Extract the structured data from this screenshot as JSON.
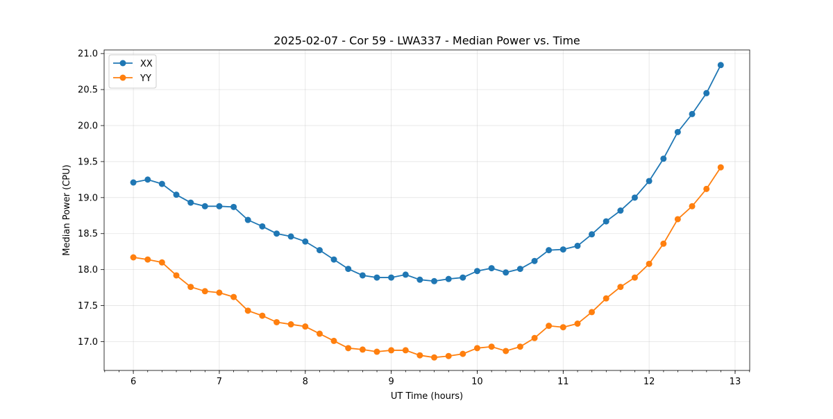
{
  "chart_data": {
    "type": "line",
    "title": "2025-02-07 - Cor 59 - LWA337 - Median Power vs. Time",
    "xlabel": "UT Time (hours)",
    "ylabel": "Median Power (CPU)",
    "xlim": [
      5.66,
      13.17
    ],
    "ylim": [
      16.6,
      21.05
    ],
    "x_ticks": [
      6,
      7,
      8,
      9,
      10,
      11,
      12,
      13
    ],
    "x_minor_tick_step": 0.1667,
    "y_ticks": [
      17.0,
      17.5,
      18.0,
      18.5,
      19.0,
      19.5,
      20.0,
      20.5,
      21.0
    ],
    "grid": true,
    "legend": "upper left",
    "x": [
      6.0,
      6.167,
      6.333,
      6.5,
      6.667,
      6.833,
      7.0,
      7.167,
      7.333,
      7.5,
      7.667,
      7.833,
      8.0,
      8.167,
      8.333,
      8.5,
      8.667,
      8.833,
      9.0,
      9.167,
      9.333,
      9.5,
      9.667,
      9.833,
      10.0,
      10.167,
      10.333,
      10.5,
      10.667,
      10.833,
      11.0,
      11.167,
      11.333,
      11.5,
      11.667,
      11.833,
      12.0,
      12.167,
      12.333,
      12.5,
      12.667,
      12.833
    ],
    "series": [
      {
        "name": "XX",
        "color": "#1f77b4",
        "values": [
          19.21,
          19.25,
          19.19,
          19.04,
          18.93,
          18.88,
          18.88,
          18.87,
          18.69,
          18.6,
          18.5,
          18.46,
          18.39,
          18.27,
          18.14,
          18.01,
          17.92,
          17.89,
          17.89,
          17.93,
          17.86,
          17.84,
          17.87,
          17.89,
          17.98,
          18.02,
          17.96,
          18.01,
          18.12,
          18.27,
          18.28,
          18.33,
          18.49,
          18.67,
          18.82,
          19.0,
          19.23,
          19.54,
          19.91,
          20.16,
          20.45,
          20.84
        ]
      },
      {
        "name": "YY",
        "color": "#ff7f0e",
        "values": [
          18.17,
          18.14,
          18.1,
          17.92,
          17.76,
          17.7,
          17.68,
          17.62,
          17.43,
          17.36,
          17.27,
          17.24,
          17.21,
          17.11,
          17.01,
          16.91,
          16.89,
          16.86,
          16.88,
          16.88,
          16.81,
          16.78,
          16.8,
          16.83,
          16.91,
          16.93,
          16.87,
          16.93,
          17.05,
          17.22,
          17.2,
          17.25,
          17.41,
          17.6,
          17.76,
          17.89,
          18.08,
          18.36,
          18.7,
          18.88,
          19.12,
          19.42
        ]
      }
    ]
  }
}
